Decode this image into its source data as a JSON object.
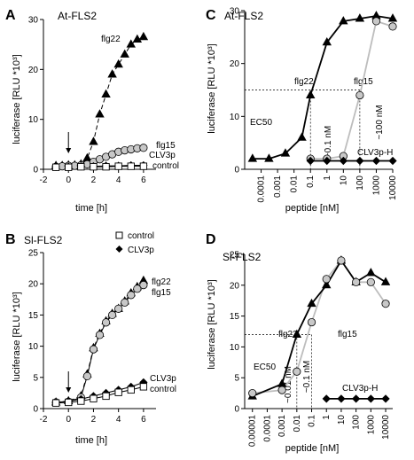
{
  "chart_data": [
    {
      "panel_letter": "A",
      "type": "line",
      "title": "At-FLS2",
      "xlabel": "time [h]",
      "ylabel": "luciferase [RLU *10³]",
      "xscale": "linear",
      "xlim": [
        -2,
        7
      ],
      "ylim": [
        0,
        30
      ],
      "xticks": [
        -2,
        0,
        2,
        4,
        6
      ],
      "xtick_labels": [
        "-2",
        "0",
        "2",
        "4",
        "6"
      ],
      "yticks": [
        0,
        10,
        20,
        30
      ],
      "ytick_labels": [
        "0",
        "10",
        "20",
        "30"
      ],
      "arrow_at_x": 0,
      "series": [
        {
          "name": "flg22",
          "marker": "triangle",
          "fill": "#000000",
          "line": "dashed",
          "x": [
            -1,
            -0.5,
            0,
            0.5,
            1,
            1.5,
            2,
            2.5,
            3,
            3.5,
            4,
            4.5,
            5,
            5.5,
            6
          ],
          "y": [
            0.7,
            0.7,
            0.8,
            0.8,
            1.0,
            2.2,
            5.5,
            11,
            15,
            19,
            21,
            23,
            25,
            26,
            26.5
          ]
        },
        {
          "name": "flg15",
          "marker": "circle",
          "fill": "#c8c8c8",
          "line": "solid",
          "x": [
            -1,
            -0.5,
            0,
            0.5,
            1,
            1.5,
            2,
            2.5,
            3,
            3.5,
            4,
            4.5,
            5,
            5.5,
            6
          ],
          "y": [
            0.5,
            0.6,
            0.7,
            0.7,
            0.8,
            1.0,
            1.5,
            2.0,
            2.5,
            3.0,
            3.5,
            3.8,
            4.0,
            4.2,
            4.3
          ]
        },
        {
          "name": "CLV3p",
          "marker": "diamond",
          "fill": "#000000",
          "line": "solid",
          "x": [
            -1,
            0,
            1,
            2,
            3,
            4,
            5,
            6
          ],
          "y": [
            0.5,
            0.5,
            0.6,
            0.6,
            0.7,
            0.7,
            0.8,
            0.8
          ]
        },
        {
          "name": "control",
          "marker": "square",
          "fill": "#ffffff",
          "line": "solid",
          "x": [
            -1,
            0,
            1,
            2,
            3,
            4,
            5,
            6
          ],
          "y": [
            0.4,
            0.4,
            0.5,
            0.5,
            0.5,
            0.6,
            0.6,
            0.6
          ]
        }
      ],
      "labels": [
        "flg22",
        "flg15",
        "CLV3p",
        "control"
      ]
    },
    {
      "panel_letter": "B",
      "type": "line",
      "title": "Sl-FLS2",
      "xlabel": "time [h]",
      "ylabel": "luciferase [RLU *10³]",
      "xscale": "linear",
      "xlim": [
        -2,
        7
      ],
      "ylim": [
        0,
        25
      ],
      "xticks": [
        -2,
        0,
        2,
        4,
        6
      ],
      "xtick_labels": [
        "-2",
        "0",
        "2",
        "4",
        "6"
      ],
      "yticks": [
        0,
        5,
        10,
        15,
        20,
        25
      ],
      "ytick_labels": [
        "0",
        "5",
        "10",
        "15",
        "20",
        "25"
      ],
      "arrow_at_x": 0,
      "legend": {
        "position": "top-center",
        "entries": [
          {
            "label": "control",
            "marker": "square",
            "fill": "#ffffff"
          },
          {
            "label": "CLV3p",
            "marker": "diamond",
            "fill": "#000000"
          }
        ]
      },
      "series": [
        {
          "name": "flg22",
          "marker": "triangle",
          "fill": "#000000",
          "line": "dashed",
          "x": [
            -1,
            0,
            1,
            1.5,
            2,
            2.5,
            3,
            3.5,
            4,
            4.5,
            5,
            5.5,
            6
          ],
          "y": [
            1.0,
            1.2,
            2.0,
            5.5,
            9.7,
            12,
            14,
            15.2,
            16,
            17.2,
            18.5,
            19.5,
            20.5
          ]
        },
        {
          "name": "flg15",
          "marker": "circle",
          "fill": "#c8c8c8",
          "line": "solid",
          "x": [
            -1,
            0,
            1,
            1.5,
            2,
            2.5,
            3,
            3.5,
            4,
            4.5,
            5,
            5.5,
            6
          ],
          "y": [
            1.0,
            1.1,
            1.8,
            5.2,
            9.5,
            11.8,
            13.8,
            15,
            16,
            17,
            18.2,
            19.2,
            19.8
          ]
        },
        {
          "name": "CLV3p",
          "marker": "diamond",
          "fill": "#000000",
          "line": "solid",
          "x": [
            -1,
            0,
            1,
            2,
            3,
            4,
            5,
            6
          ],
          "y": [
            1.0,
            1.2,
            1.5,
            2.0,
            2.5,
            3.0,
            3.5,
            4.2
          ]
        },
        {
          "name": "control",
          "marker": "square",
          "fill": "#ffffff",
          "line": "solid",
          "x": [
            -1,
            0,
            1,
            2,
            3,
            4,
            5,
            6
          ],
          "y": [
            0.9,
            1.0,
            1.2,
            1.6,
            2.0,
            2.6,
            3.0,
            3.5
          ]
        }
      ],
      "labels": [
        "flg22",
        "flg15",
        "CLV3p",
        "control"
      ]
    },
    {
      "panel_letter": "C",
      "type": "scatter",
      "title": "At-FLS2",
      "xlabel": "peptide [nM]",
      "ylabel": "luciferase [RLU *10³]",
      "xscale": "log",
      "xlim": [
        1e-05,
        10000
      ],
      "ylim": [
        0,
        30
      ],
      "xticks": [
        0.0001,
        0.001,
        0.01,
        0.1,
        1,
        10,
        100,
        1000,
        10000
      ],
      "xtick_labels": [
        "0.0001",
        "0.001",
        "0.01",
        "0.1",
        "1",
        "10",
        "100",
        "1000",
        "10000"
      ],
      "yticks": [
        0,
        10,
        20,
        30
      ],
      "ytick_labels": [
        "0",
        "10",
        "20",
        "30"
      ],
      "series": [
        {
          "name": "flg22",
          "marker": "triangle",
          "fill": "#000000",
          "curve": "#000000",
          "x": [
            3e-05,
            0.0003,
            0.003,
            0.03,
            0.1,
            1,
            10,
            100,
            1000,
            10000
          ],
          "y": [
            2.0,
            2.0,
            3.0,
            6.0,
            14,
            24,
            28,
            28.5,
            29,
            28.5
          ]
        },
        {
          "name": "flg15",
          "marker": "circle",
          "fill": "#c8c8c8",
          "curve": "#c8c8c8",
          "x": [
            0.1,
            1,
            10,
            100,
            1000,
            10000
          ],
          "y": [
            2.0,
            2.0,
            2.5,
            14,
            28,
            27
          ]
        },
        {
          "name": "CLV3p-H",
          "marker": "diamond",
          "fill": "#000000",
          "curve": "#000000",
          "x": [
            0.1,
            1,
            10,
            100,
            1000,
            10000
          ],
          "y": [
            1.6,
            1.6,
            1.6,
            1.6,
            1.6,
            1.6
          ]
        }
      ],
      "ec50": {
        "label": "EC50",
        "y": 15,
        "values": [
          {
            "x": 0.1,
            "label": "~0.1 nM"
          },
          {
            "x": 100,
            "label": "~100 nM"
          }
        ]
      },
      "labels": [
        "flg22",
        "flg15",
        "CLV3p-H"
      ]
    },
    {
      "panel_letter": "D",
      "type": "scatter",
      "title": "Sl-FLS2",
      "xlabel": "peptide [nM]",
      "ylabel": "luciferase [RLU *10³]",
      "xscale": "log",
      "xlim": [
        3e-06,
        30000
      ],
      "ylim": [
        0,
        25
      ],
      "xticks": [
        1e-05,
        0.0001,
        0.001,
        0.01,
        0.1,
        1,
        10,
        100,
        1000,
        10000
      ],
      "xtick_labels": [
        "0.00001",
        "0.0001",
        "0.001",
        "0.01",
        "0.1",
        "1",
        "10",
        "100",
        "1000",
        "10000"
      ],
      "yticks": [
        0,
        5,
        10,
        15,
        20,
        25
      ],
      "ytick_labels": [
        "0",
        "5",
        "10",
        "15",
        "20",
        "25"
      ],
      "series": [
        {
          "name": "flg22",
          "marker": "triangle",
          "fill": "#000000",
          "curve": "#000000",
          "x": [
            1e-05,
            0.001,
            0.01,
            0.1,
            1,
            10,
            100,
            1000,
            10000
          ],
          "y": [
            2.0,
            4.0,
            12,
            17,
            20,
            24,
            20.5,
            22,
            20.5
          ]
        },
        {
          "name": "flg15",
          "marker": "circle",
          "fill": "#c8c8c8",
          "curve": "#c8c8c8",
          "x": [
            1e-05,
            0.001,
            0.01,
            0.1,
            1,
            10,
            100,
            1000,
            10000
          ],
          "y": [
            2.5,
            3.0,
            6.0,
            14,
            21,
            24,
            20.5,
            20.5,
            17
          ]
        },
        {
          "name": "CLV3p-H",
          "marker": "diamond",
          "fill": "#000000",
          "curve": "#000000",
          "x": [
            1,
            10,
            100,
            1000,
            10000
          ],
          "y": [
            1.6,
            1.6,
            1.6,
            1.6,
            1.6
          ]
        }
      ],
      "ec50": {
        "label": "EC50",
        "y": 12,
        "values": [
          {
            "x": 0.01,
            "label": "~0.01 nM"
          },
          {
            "x": 0.1,
            "label": "~0.1 nM"
          }
        ]
      },
      "labels": [
        "flg22",
        "flg15",
        "CLV3p-H"
      ]
    }
  ]
}
